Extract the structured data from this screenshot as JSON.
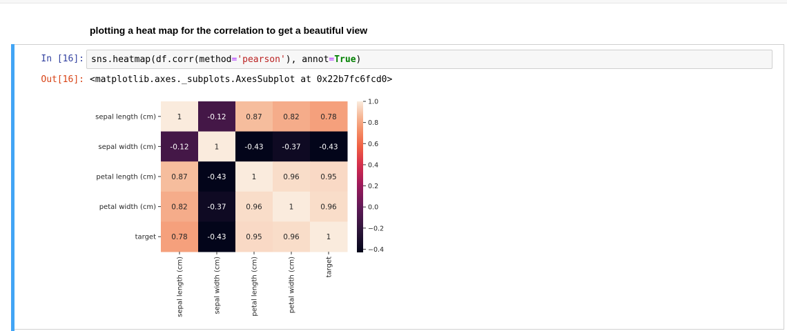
{
  "markdown": {
    "text": "plotting a heat map for the correlation to get a beautiful view"
  },
  "cell": {
    "in_prompt": "In [16]:",
    "out_prompt": "Out[16]:",
    "code": {
      "prefix": "sns.heatmap(df.corr(method",
      "eq1": "=",
      "str": "'pearson'",
      "mid": "), annot",
      "eq2": "=",
      "kw": "True",
      "suffix": ")"
    },
    "output_text": "<matplotlib.axes._subplots.AxesSubplot at 0x22b7fc6fcd0>"
  },
  "colors": {
    "cell_bar": "#42a5f5",
    "in_prompt": "#303f9f",
    "out_prompt": "#d84315"
  },
  "chart_data": {
    "type": "heatmap",
    "title": "",
    "xlabel": "",
    "ylabel": "",
    "colormap": "rocket",
    "row_labels": [
      "sepal length (cm)",
      "sepal width (cm)",
      "petal length (cm)",
      "petal width (cm)",
      "target"
    ],
    "col_labels": [
      "sepal length (cm)",
      "sepal width (cm)",
      "petal length (cm)",
      "petal width (cm)",
      "target"
    ],
    "values": [
      [
        1,
        -0.12,
        0.87,
        0.82,
        0.78
      ],
      [
        -0.12,
        1,
        -0.43,
        -0.37,
        -0.43
      ],
      [
        0.87,
        -0.43,
        1,
        0.96,
        0.95
      ],
      [
        0.82,
        -0.37,
        0.96,
        1,
        0.96
      ],
      [
        0.78,
        -0.43,
        0.95,
        0.96,
        1
      ]
    ],
    "annotations": [
      [
        "1",
        "-0.12",
        "0.87",
        "0.82",
        "0.78"
      ],
      [
        "-0.12",
        "1",
        "-0.43",
        "-0.37",
        "-0.43"
      ],
      [
        "0.87",
        "-0.43",
        "1",
        "0.96",
        "0.95"
      ],
      [
        "0.82",
        "-0.37",
        "0.96",
        "1",
        "0.96"
      ],
      [
        "0.78",
        "-0.43",
        "0.95",
        "0.96",
        "1"
      ]
    ],
    "colorbar": {
      "vmin": -0.43,
      "vmax": 1.0,
      "ticks": [
        1.0,
        0.8,
        0.6,
        0.4,
        0.2,
        0.0,
        -0.2,
        -0.4
      ],
      "tick_labels": [
        "1.0",
        "0.8",
        "0.6",
        "0.4",
        "0.2",
        "0.0",
        "−0.2",
        "−0.4"
      ]
    }
  }
}
